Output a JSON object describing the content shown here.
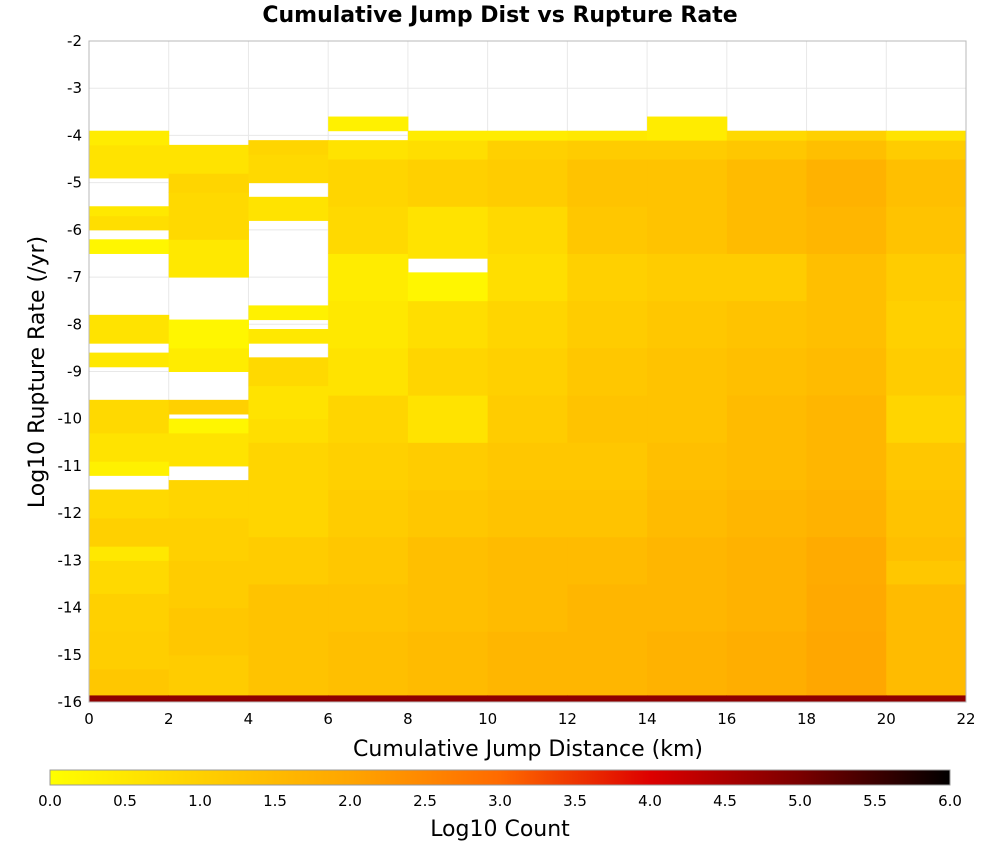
{
  "chart_data": {
    "type": "heatmap",
    "title": "Cumulative Jump Dist vs Rupture Rate",
    "xlabel": "Cumulative Jump Distance (km)",
    "ylabel": "Log10 Rupture Rate (/yr)",
    "xlim": [
      0,
      22
    ],
    "ylim": [
      -16,
      -2
    ],
    "x_ticks": [
      "0",
      "2",
      "4",
      "6",
      "8",
      "10",
      "12",
      "14",
      "16",
      "18",
      "20",
      "22"
    ],
    "y_ticks": [
      "-2",
      "-3",
      "-4",
      "-5",
      "-6",
      "-7",
      "-8",
      "-9",
      "-10",
      "-11",
      "-12",
      "-13",
      "-14",
      "-15",
      "-16"
    ],
    "grid": true,
    "x_bins": [
      [
        0,
        2
      ],
      [
        2,
        4
      ],
      [
        4,
        6
      ],
      [
        6,
        8
      ],
      [
        8,
        10
      ],
      [
        10,
        12
      ],
      [
        12,
        14
      ],
      [
        14,
        16
      ],
      [
        16,
        18
      ],
      [
        18,
        20
      ],
      [
        20,
        22
      ]
    ],
    "y_bin_width": 0.3,
    "description_of_cells": "each cell value is Log10 Count; null means empty (white)",
    "colorbar": {
      "label": "Log10 Count",
      "range": [
        0,
        6
      ],
      "ticks": [
        "0.0",
        "0.5",
        "1.0",
        "1.5",
        "2.0",
        "2.5",
        "3.0",
        "3.5",
        "4.0",
        "4.5",
        "5.0",
        "5.5",
        "6.0"
      ],
      "colors": [
        "#ffff00",
        "#ffd000",
        "#ffa500",
        "#ff6a00",
        "#dd0000",
        "#7a0000",
        "#000000"
      ]
    },
    "columns": [
      {
        "x0": 0,
        "x1": 2,
        "cells": [
          [
            -16.0,
            -15.85,
            4.8
          ],
          [
            -15.85,
            -15.3,
            1.2
          ],
          [
            -15.3,
            -14.5,
            1.05
          ],
          [
            -14.5,
            -13.7,
            1.0
          ],
          [
            -13.7,
            -13.0,
            0.8
          ],
          [
            -13.0,
            -12.7,
            0.5
          ],
          [
            -12.7,
            -12.1,
            1.0
          ],
          [
            -12.1,
            -11.5,
            0.8
          ],
          [
            -11.5,
            -11.2,
            null
          ],
          [
            -11.2,
            -10.9,
            0.3
          ],
          [
            -10.9,
            -10.3,
            0.6
          ],
          [
            -10.3,
            -9.6,
            0.8
          ],
          [
            -9.6,
            -8.9,
            null
          ],
          [
            -8.9,
            -8.6,
            0.5
          ],
          [
            -8.6,
            -8.4,
            null
          ],
          [
            -8.4,
            -7.8,
            0.6
          ],
          [
            -7.8,
            -6.5,
            null
          ],
          [
            -6.5,
            -6.2,
            0.2
          ],
          [
            -6.2,
            -6.0,
            null
          ],
          [
            -6.0,
            -5.7,
            0.7
          ],
          [
            -5.7,
            -5.5,
            0.5
          ],
          [
            -5.5,
            -4.9,
            null
          ],
          [
            -4.9,
            -4.2,
            0.6
          ],
          [
            -4.2,
            -3.9,
            0.4
          ],
          [
            -3.9,
            -2,
            null
          ]
        ]
      },
      {
        "x0": 2,
        "x1": 4,
        "cells": [
          [
            -16.0,
            -15.85,
            4.8
          ],
          [
            -15.85,
            -15.0,
            1.1
          ],
          [
            -15.0,
            -14.0,
            1.2
          ],
          [
            -14.0,
            -13.0,
            1.1
          ],
          [
            -13.0,
            -12.1,
            1.0
          ],
          [
            -12.1,
            -11.3,
            0.9
          ],
          [
            -11.3,
            -11.0,
            null
          ],
          [
            -11.0,
            -10.3,
            0.6
          ],
          [
            -10.3,
            -10.0,
            0.2
          ],
          [
            -10.0,
            -9.9,
            null
          ],
          [
            -9.9,
            -9.6,
            1.0
          ],
          [
            -9.6,
            -9.0,
            null
          ],
          [
            -9.0,
            -8.5,
            0.4
          ],
          [
            -8.5,
            -7.9,
            0.2
          ],
          [
            -7.9,
            -7.0,
            null
          ],
          [
            -7.0,
            -6.2,
            0.5
          ],
          [
            -6.2,
            -5.2,
            0.8
          ],
          [
            -5.2,
            -4.8,
            0.9
          ],
          [
            -4.8,
            -4.2,
            0.6
          ],
          [
            -4.2,
            -4.1,
            null
          ],
          [
            -4.1,
            -2,
            null
          ]
        ]
      },
      {
        "x0": 4,
        "x1": 6,
        "cells": [
          [
            -16.0,
            -15.85,
            4.8
          ],
          [
            -15.85,
            -14.5,
            1.3
          ],
          [
            -14.5,
            -13.5,
            1.3
          ],
          [
            -13.5,
            -12.5,
            1.1
          ],
          [
            -12.5,
            -11.5,
            0.9
          ],
          [
            -11.5,
            -10.5,
            0.9
          ],
          [
            -10.5,
            -10.0,
            0.7
          ],
          [
            -10.0,
            -9.3,
            0.6
          ],
          [
            -9.3,
            -8.7,
            0.8
          ],
          [
            -8.7,
            -8.4,
            null
          ],
          [
            -8.4,
            -8.1,
            0.5
          ],
          [
            -8.1,
            -7.9,
            null
          ],
          [
            -7.9,
            -7.6,
            0.3
          ],
          [
            -7.6,
            -5.8,
            null
          ],
          [
            -5.8,
            -5.3,
            0.6
          ],
          [
            -5.3,
            -5.0,
            null
          ],
          [
            -5.0,
            -4.4,
            0.8
          ],
          [
            -4.4,
            -4.1,
            0.9
          ],
          [
            -4.1,
            -2,
            null
          ]
        ]
      },
      {
        "x0": 6,
        "x1": 8,
        "cells": [
          [
            -16.0,
            -15.85,
            4.8
          ],
          [
            -15.85,
            -14.5,
            1.4
          ],
          [
            -14.5,
            -13.5,
            1.3
          ],
          [
            -13.5,
            -12.5,
            1.2
          ],
          [
            -12.5,
            -11.5,
            1.1
          ],
          [
            -11.5,
            -10.5,
            1.0
          ],
          [
            -10.5,
            -9.5,
            0.9
          ],
          [
            -9.5,
            -8.5,
            0.6
          ],
          [
            -8.5,
            -7.5,
            0.5
          ],
          [
            -7.5,
            -6.5,
            0.4
          ],
          [
            -6.5,
            -5.5,
            0.8
          ],
          [
            -5.5,
            -4.5,
            0.9
          ],
          [
            -4.5,
            -4.1,
            0.6
          ],
          [
            -4.1,
            -3.9,
            null
          ],
          [
            -3.9,
            -3.6,
            0.3
          ],
          [
            -3.6,
            -2,
            null
          ]
        ]
      },
      {
        "x0": 8,
        "x1": 10,
        "cells": [
          [
            -16.0,
            -15.85,
            4.8
          ],
          [
            -15.85,
            -14.5,
            1.5
          ],
          [
            -14.5,
            -13.5,
            1.4
          ],
          [
            -13.5,
            -12.5,
            1.4
          ],
          [
            -12.5,
            -11.5,
            1.2
          ],
          [
            -11.5,
            -10.5,
            1.1
          ],
          [
            -10.5,
            -9.5,
            0.6
          ],
          [
            -9.5,
            -8.5,
            0.9
          ],
          [
            -8.5,
            -7.5,
            0.7
          ],
          [
            -7.5,
            -6.9,
            0.2
          ],
          [
            -6.9,
            -6.6,
            null
          ],
          [
            -6.6,
            -5.5,
            0.6
          ],
          [
            -5.5,
            -4.5,
            1.0
          ],
          [
            -4.5,
            -4.1,
            0.7
          ],
          [
            -4.1,
            -3.9,
            0.4
          ],
          [
            -3.9,
            -2,
            null
          ]
        ]
      },
      {
        "x0": 10,
        "x1": 12,
        "cells": [
          [
            -16.0,
            -15.85,
            4.8
          ],
          [
            -15.85,
            -14.5,
            1.6
          ],
          [
            -14.5,
            -13.5,
            1.5
          ],
          [
            -13.5,
            -12.5,
            1.5
          ],
          [
            -12.5,
            -11.5,
            1.3
          ],
          [
            -11.5,
            -10.5,
            1.2
          ],
          [
            -10.5,
            -9.5,
            1.1
          ],
          [
            -9.5,
            -8.5,
            1.0
          ],
          [
            -8.5,
            -7.5,
            0.9
          ],
          [
            -7.5,
            -6.5,
            0.7
          ],
          [
            -6.5,
            -5.5,
            0.8
          ],
          [
            -5.5,
            -4.5,
            1.1
          ],
          [
            -4.5,
            -4.1,
            1.0
          ],
          [
            -4.1,
            -3.9,
            0.4
          ],
          [
            -3.9,
            -2,
            null
          ]
        ]
      },
      {
        "x0": 12,
        "x1": 14,
        "cells": [
          [
            -16.0,
            -15.85,
            4.8
          ],
          [
            -15.85,
            -14.5,
            1.6
          ],
          [
            -14.5,
            -13.5,
            1.6
          ],
          [
            -13.5,
            -12.5,
            1.5
          ],
          [
            -12.5,
            -11.5,
            1.3
          ],
          [
            -11.5,
            -10.5,
            1.2
          ],
          [
            -10.5,
            -9.5,
            1.3
          ],
          [
            -9.5,
            -8.5,
            1.2
          ],
          [
            -8.5,
            -7.5,
            1.1
          ],
          [
            -7.5,
            -6.5,
            1.0
          ],
          [
            -6.5,
            -5.5,
            1.2
          ],
          [
            -5.5,
            -4.5,
            1.3
          ],
          [
            -4.5,
            -4.1,
            1.1
          ],
          [
            -4.1,
            -3.9,
            0.5
          ],
          [
            -3.9,
            -2,
            null
          ]
        ]
      },
      {
        "x0": 14,
        "x1": 16,
        "cells": [
          [
            -16.0,
            -15.85,
            4.8
          ],
          [
            -15.85,
            -14.5,
            1.7
          ],
          [
            -14.5,
            -13.5,
            1.6
          ],
          [
            -13.5,
            -12.5,
            1.6
          ],
          [
            -12.5,
            -11.5,
            1.5
          ],
          [
            -11.5,
            -10.5,
            1.4
          ],
          [
            -10.5,
            -9.5,
            1.3
          ],
          [
            -9.5,
            -8.5,
            1.3
          ],
          [
            -8.5,
            -7.5,
            1.2
          ],
          [
            -7.5,
            -6.5,
            1.1
          ],
          [
            -6.5,
            -5.5,
            1.3
          ],
          [
            -5.5,
            -4.5,
            1.3
          ],
          [
            -4.5,
            -4.1,
            1.1
          ],
          [
            -4.1,
            -3.6,
            0.4
          ],
          [
            -3.6,
            -2,
            null
          ]
        ]
      },
      {
        "x0": 16,
        "x1": 18,
        "cells": [
          [
            -16.0,
            -15.85,
            4.8
          ],
          [
            -15.85,
            -14.5,
            1.8
          ],
          [
            -14.5,
            -13.5,
            1.7
          ],
          [
            -13.5,
            -12.5,
            1.7
          ],
          [
            -12.5,
            -11.5,
            1.6
          ],
          [
            -11.5,
            -10.5,
            1.5
          ],
          [
            -10.5,
            -9.5,
            1.5
          ],
          [
            -9.5,
            -8.5,
            1.4
          ],
          [
            -8.5,
            -7.5,
            1.3
          ],
          [
            -7.5,
            -6.5,
            1.1
          ],
          [
            -6.5,
            -5.5,
            1.5
          ],
          [
            -5.5,
            -4.5,
            1.5
          ],
          [
            -4.5,
            -4.1,
            1.2
          ],
          [
            -4.1,
            -3.9,
            0.8
          ],
          [
            -3.9,
            -2,
            null
          ]
        ]
      },
      {
        "x0": 18,
        "x1": 20,
        "cells": [
          [
            -16.0,
            -15.85,
            4.8
          ],
          [
            -15.85,
            -14.5,
            1.95
          ],
          [
            -14.5,
            -13.5,
            1.9
          ],
          [
            -13.5,
            -12.5,
            1.85
          ],
          [
            -12.5,
            -11.5,
            1.7
          ],
          [
            -11.5,
            -10.5,
            1.6
          ],
          [
            -10.5,
            -9.5,
            1.6
          ],
          [
            -9.5,
            -8.5,
            1.5
          ],
          [
            -8.5,
            -7.5,
            1.4
          ],
          [
            -7.5,
            -6.5,
            1.4
          ],
          [
            -6.5,
            -5.5,
            1.6
          ],
          [
            -5.5,
            -4.5,
            1.7
          ],
          [
            -4.5,
            -4.1,
            1.4
          ],
          [
            -4.1,
            -3.9,
            1.0
          ],
          [
            -3.9,
            -2,
            null
          ]
        ]
      },
      {
        "x0": 20,
        "x1": 22,
        "cells": [
          [
            -16.0,
            -15.85,
            4.8
          ],
          [
            -15.85,
            -14.5,
            1.5
          ],
          [
            -14.5,
            -13.5,
            1.5
          ],
          [
            -13.5,
            -13.0,
            1.2
          ],
          [
            -13.0,
            -12.5,
            1.4
          ],
          [
            -12.5,
            -11.5,
            1.3
          ],
          [
            -11.5,
            -10.5,
            1.2
          ],
          [
            -10.5,
            -9.5,
            0.9
          ],
          [
            -9.5,
            -8.5,
            1.1
          ],
          [
            -8.5,
            -7.5,
            1.0
          ],
          [
            -7.5,
            -6.5,
            1.1
          ],
          [
            -6.5,
            -5.5,
            1.3
          ],
          [
            -5.5,
            -4.5,
            1.4
          ],
          [
            -4.5,
            -4.1,
            1.1
          ],
          [
            -4.1,
            -3.9,
            0.6
          ],
          [
            -3.9,
            -2,
            null
          ]
        ]
      }
    ]
  }
}
